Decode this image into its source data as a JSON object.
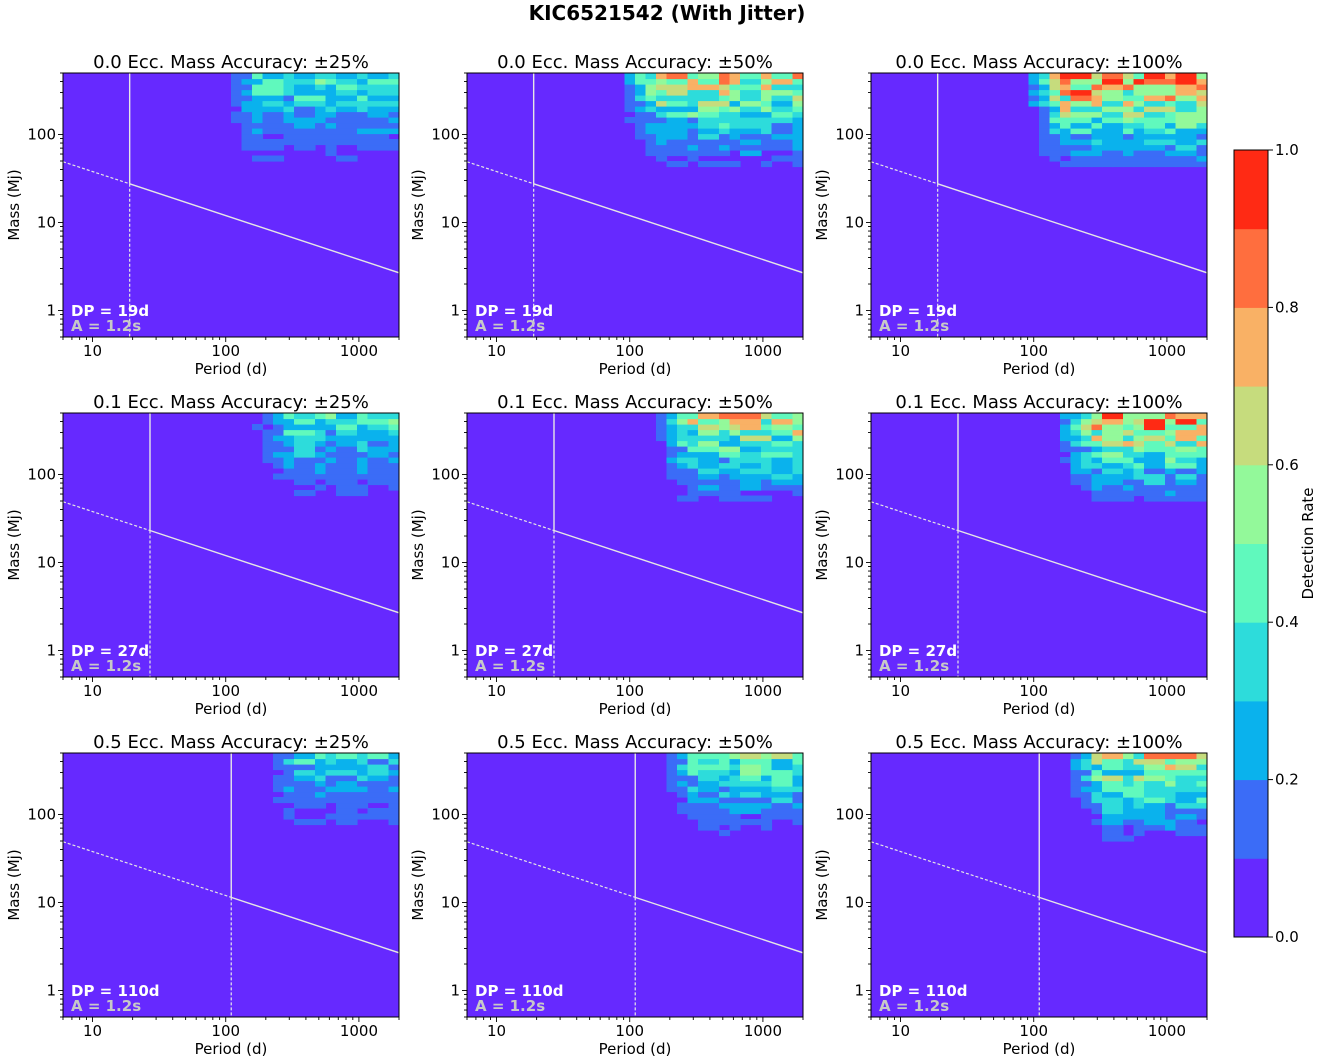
{
  "figure_title": "KIC6521542 (With Jitter)",
  "colorbar": {
    "label": "Detection Rate",
    "tick_labels": [
      "0.0",
      "0.2",
      "0.4",
      "0.6",
      "0.8",
      "1.0"
    ],
    "levels": [
      0.0,
      0.1,
      0.2,
      0.3,
      0.4,
      0.5,
      0.6,
      0.7,
      0.8,
      0.9,
      1.0
    ],
    "colors": [
      "#6629ff",
      "#3b6cf7",
      "#0ab2ed",
      "#2ddcdb",
      "#60f9bd",
      "#93f99a",
      "#c6dc7d",
      "#f9b165",
      "#ff6e3e",
      "#ff2a14"
    ]
  },
  "chart_data": [
    {
      "type": "heatmap",
      "title": "0.0 Ecc. Mass Accuracy: ±25%",
      "xlabel": "Period (d)",
      "ylabel": "Mass (Mj)",
      "x_scale": "log",
      "y_scale": "log",
      "xlim": [
        6,
        2000
      ],
      "ylim": [
        0.5,
        500
      ],
      "x_ticks": [
        "10",
        "100",
        "1000"
      ],
      "y_ticks": [
        "1",
        "10",
        "100"
      ],
      "annotation": {
        "dp": "DP = 19d",
        "a": "A = 1.2s"
      },
      "dp_days": 19,
      "max_detection_rate": 0.5
    },
    {
      "type": "heatmap",
      "title": "0.0 Ecc. Mass Accuracy: ±50%",
      "xlabel": "Period (d)",
      "ylabel": "Mass (Mj)",
      "x_scale": "log",
      "y_scale": "log",
      "xlim": [
        6,
        2000
      ],
      "ylim": [
        0.5,
        500
      ],
      "x_ticks": [
        "10",
        "100",
        "1000"
      ],
      "y_ticks": [
        "1",
        "10",
        "100"
      ],
      "annotation": {
        "dp": "DP = 19d",
        "a": "A = 1.2s"
      },
      "dp_days": 19,
      "max_detection_rate": 0.8
    },
    {
      "type": "heatmap",
      "title": "0.0 Ecc. Mass Accuracy: ±100%",
      "xlabel": "Period (d)",
      "ylabel": "Mass (Mj)",
      "x_scale": "log",
      "y_scale": "log",
      "xlim": [
        6,
        2000
      ],
      "ylim": [
        0.5,
        500
      ],
      "x_ticks": [
        "10",
        "100",
        "1000"
      ],
      "y_ticks": [
        "1",
        "10",
        "100"
      ],
      "annotation": {
        "dp": "DP = 19d",
        "a": "A = 1.2s"
      },
      "dp_days": 19,
      "max_detection_rate": 1.0
    },
    {
      "type": "heatmap",
      "title": "0.1 Ecc. Mass Accuracy: ±25%",
      "xlabel": "Period (d)",
      "ylabel": "Mass (Mj)",
      "x_scale": "log",
      "y_scale": "log",
      "xlim": [
        6,
        2000
      ],
      "ylim": [
        0.5,
        500
      ],
      "x_ticks": [
        "10",
        "100",
        "1000"
      ],
      "y_ticks": [
        "1",
        "10",
        "100"
      ],
      "annotation": {
        "dp": "DP = 27d",
        "a": "A = 1.2s"
      },
      "dp_days": 27,
      "max_detection_rate": 0.5
    },
    {
      "type": "heatmap",
      "title": "0.1 Ecc. Mass Accuracy: ±50%",
      "xlabel": "Period (d)",
      "ylabel": "Mass (Mj)",
      "x_scale": "log",
      "y_scale": "log",
      "xlim": [
        6,
        2000
      ],
      "ylim": [
        0.5,
        500
      ],
      "x_ticks": [
        "10",
        "100",
        "1000"
      ],
      "y_ticks": [
        "1",
        "10",
        "100"
      ],
      "annotation": {
        "dp": "DP = 27d",
        "a": "A = 1.2s"
      },
      "dp_days": 27,
      "max_detection_rate": 0.8
    },
    {
      "type": "heatmap",
      "title": "0.1 Ecc. Mass Accuracy: ±100%",
      "xlabel": "Period (d)",
      "ylabel": "Mass (Mj)",
      "x_scale": "log",
      "y_scale": "log",
      "xlim": [
        6,
        2000
      ],
      "ylim": [
        0.5,
        500
      ],
      "x_ticks": [
        "10",
        "100",
        "1000"
      ],
      "y_ticks": [
        "1",
        "10",
        "100"
      ],
      "annotation": {
        "dp": "DP = 27d",
        "a": "A = 1.2s"
      },
      "dp_days": 27,
      "max_detection_rate": 1.0
    },
    {
      "type": "heatmap",
      "title": "0.5 Ecc. Mass Accuracy: ±25%",
      "xlabel": "Period (d)",
      "ylabel": "Mass (Mj)",
      "x_scale": "log",
      "y_scale": "log",
      "xlim": [
        6,
        2000
      ],
      "ylim": [
        0.5,
        500
      ],
      "x_ticks": [
        "10",
        "100",
        "1000"
      ],
      "y_ticks": [
        "1",
        "10",
        "100"
      ],
      "annotation": {
        "dp": "DP = 110d",
        "a": "A = 1.2s"
      },
      "dp_days": 110,
      "max_detection_rate": 0.4
    },
    {
      "type": "heatmap",
      "title": "0.5 Ecc. Mass Accuracy: ±50%",
      "xlabel": "Period (d)",
      "ylabel": "Mass (Mj)",
      "x_scale": "log",
      "y_scale": "log",
      "xlim": [
        6,
        2000
      ],
      "ylim": [
        0.5,
        500
      ],
      "x_ticks": [
        "10",
        "100",
        "1000"
      ],
      "y_ticks": [
        "1",
        "10",
        "100"
      ],
      "annotation": {
        "dp": "DP = 110d",
        "a": "A = 1.2s"
      },
      "dp_days": 110,
      "max_detection_rate": 0.6
    },
    {
      "type": "heatmap",
      "title": "0.5 Ecc. Mass Accuracy: ±100%",
      "xlabel": "Period (d)",
      "ylabel": "Mass (Mj)",
      "x_scale": "log",
      "y_scale": "log",
      "xlim": [
        6,
        2000
      ],
      "ylim": [
        0.5,
        500
      ],
      "x_ticks": [
        "10",
        "100",
        "1000"
      ],
      "y_ticks": [
        "1",
        "10",
        "100"
      ],
      "annotation": {
        "dp": "DP = 110d",
        "a": "A = 1.2s"
      },
      "dp_days": 110,
      "max_detection_rate": 0.8
    }
  ]
}
